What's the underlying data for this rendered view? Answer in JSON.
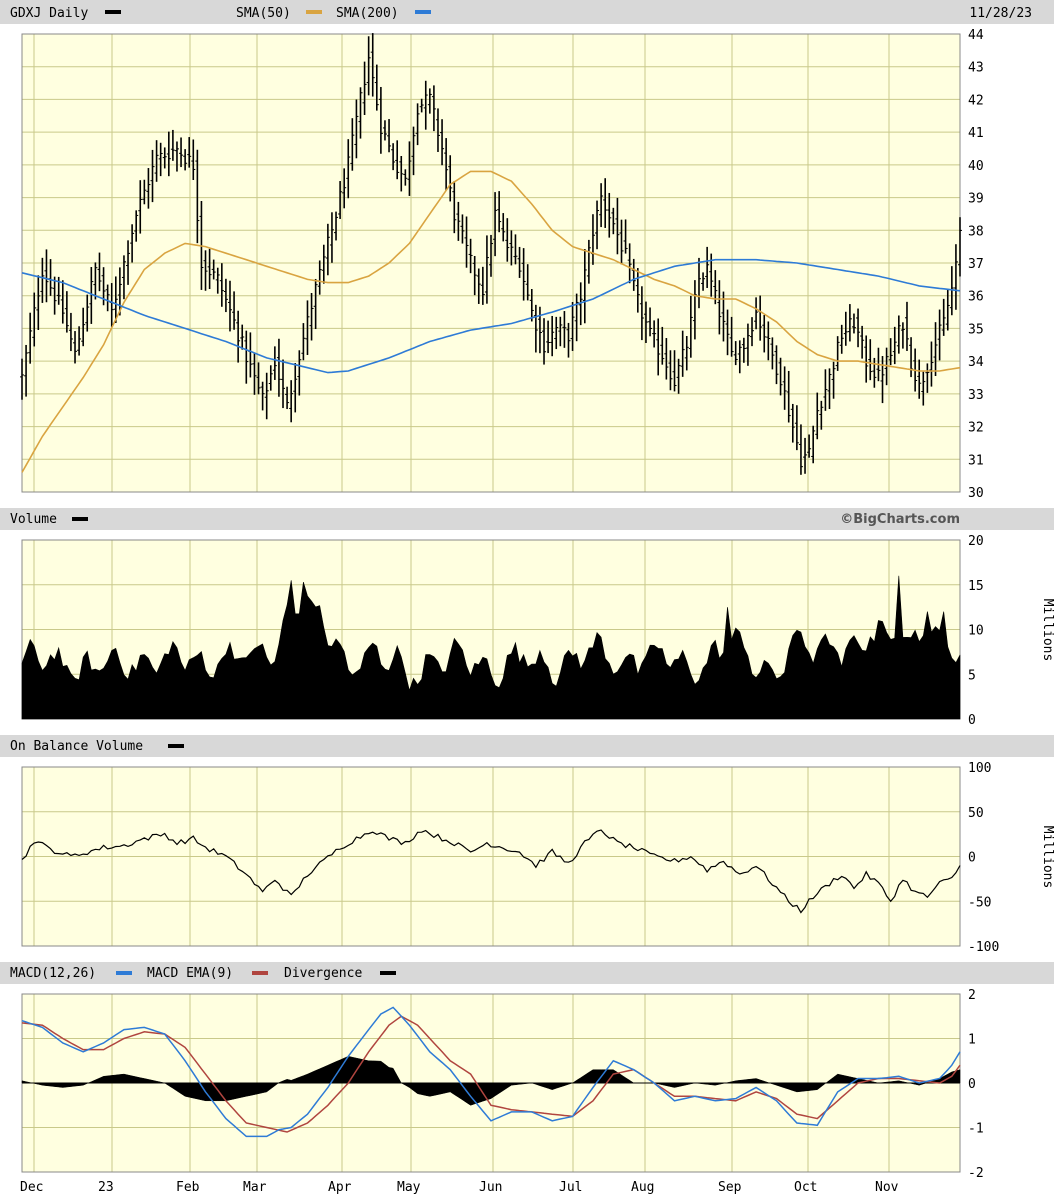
{
  "header": {
    "symbol_label": "GDXJ Daily",
    "sma50_label": "SMA(50)",
    "sma200_label": "SMA(200)",
    "date": "11/28/23"
  },
  "brand": "©BigCharts.com",
  "colors": {
    "plot_bg": "#FFFFE0",
    "grid": "#C9C98A",
    "header_bg": "#D8D8D8",
    "price": "#000000",
    "sma50": "#D9A441",
    "sma200": "#2E7BD6",
    "macd": "#2E7BD6",
    "macd_ema": "#B0453F",
    "divergence": "#000000"
  },
  "chart_data": [
    {
      "id": "price",
      "type": "ohlc",
      "x_labels": [
        "Dec",
        "23",
        "Feb",
        "Mar",
        "Apr",
        "May",
        "Jun",
        "Jul",
        "Aug",
        "Sep",
        "Oct",
        "Nov"
      ],
      "ylim": [
        30,
        44
      ],
      "y_ticks": [
        30,
        31,
        32,
        33,
        34,
        35,
        36,
        37,
        38,
        39,
        40,
        41,
        42,
        43,
        44
      ],
      "price_keypoints": [
        [
          0,
          33.5
        ],
        [
          5,
          36.8
        ],
        [
          10,
          35.5
        ],
        [
          13,
          34.2
        ],
        [
          18,
          36.8
        ],
        [
          22,
          35.5
        ],
        [
          28,
          38.5
        ],
        [
          33,
          40.2
        ],
        [
          38,
          40.5
        ],
        [
          42,
          40.0
        ],
        [
          44,
          37.0
        ],
        [
          48,
          36.5
        ],
        [
          52,
          35.2
        ],
        [
          56,
          33.8
        ],
        [
          59,
          32.8
        ],
        [
          62,
          34.0
        ],
        [
          65,
          32.6
        ],
        [
          68,
          34.2
        ],
        [
          72,
          36.2
        ],
        [
          76,
          38.0
        ],
        [
          80,
          40.0
        ],
        [
          83,
          42.0
        ],
        [
          85,
          43.3
        ],
        [
          88,
          41.2
        ],
        [
          91,
          40.2
        ],
        [
          94,
          39.5
        ],
        [
          97,
          41.8
        ],
        [
          100,
          42.0
        ],
        [
          103,
          40.5
        ],
        [
          106,
          38.5
        ],
        [
          110,
          37.0
        ],
        [
          113,
          36.2
        ],
        [
          116,
          38.5
        ],
        [
          119,
          37.5
        ],
        [
          122,
          37.0
        ],
        [
          125,
          35.5
        ],
        [
          128,
          34.5
        ],
        [
          131,
          35.0
        ],
        [
          134,
          34.8
        ],
        [
          137,
          36.0
        ],
        [
          140,
          38.0
        ],
        [
          142,
          39.0
        ],
        [
          145,
          38.2
        ],
        [
          148,
          37.2
        ],
        [
          151,
          35.8
        ],
        [
          154,
          34.8
        ],
        [
          157,
          34.2
        ],
        [
          160,
          33.4
        ],
        [
          163,
          34.5
        ],
        [
          166,
          36.5
        ],
        [
          168,
          36.8
        ],
        [
          171,
          35.5
        ],
        [
          174,
          34.2
        ],
        [
          177,
          34.5
        ],
        [
          180,
          35.5
        ],
        [
          183,
          34.5
        ],
        [
          186,
          33.5
        ],
        [
          189,
          32.0
        ],
        [
          191,
          31.0
        ],
        [
          193,
          31.2
        ],
        [
          195,
          32.5
        ],
        [
          198,
          33.5
        ],
        [
          201,
          34.8
        ],
        [
          204,
          35.2
        ],
        [
          207,
          34.0
        ],
        [
          210,
          33.5
        ],
        [
          213,
          34.2
        ],
        [
          216,
          35.2
        ],
        [
          218,
          34.0
        ],
        [
          220,
          33.2
        ],
        [
          223,
          34.2
        ],
        [
          226,
          35.2
        ],
        [
          228,
          36.2
        ],
        [
          230,
          37.8
        ]
      ],
      "sma50": [
        [
          0,
          30.6
        ],
        [
          5,
          31.7
        ],
        [
          10,
          32.6
        ],
        [
          15,
          33.5
        ],
        [
          20,
          34.5
        ],
        [
          25,
          35.8
        ],
        [
          30,
          36.8
        ],
        [
          35,
          37.3
        ],
        [
          40,
          37.6
        ],
        [
          45,
          37.5
        ],
        [
          50,
          37.3
        ],
        [
          55,
          37.1
        ],
        [
          60,
          36.9
        ],
        [
          65,
          36.7
        ],
        [
          70,
          36.5
        ],
        [
          75,
          36.4
        ],
        [
          80,
          36.4
        ],
        [
          85,
          36.6
        ],
        [
          90,
          37.0
        ],
        [
          95,
          37.6
        ],
        [
          100,
          38.5
        ],
        [
          105,
          39.4
        ],
        [
          110,
          39.8
        ],
        [
          115,
          39.8
        ],
        [
          120,
          39.5
        ],
        [
          125,
          38.8
        ],
        [
          130,
          38.0
        ],
        [
          135,
          37.5
        ],
        [
          140,
          37.3
        ],
        [
          145,
          37.1
        ],
        [
          150,
          36.8
        ],
        [
          155,
          36.5
        ],
        [
          160,
          36.3
        ],
        [
          165,
          36.0
        ],
        [
          170,
          35.9
        ],
        [
          175,
          35.9
        ],
        [
          180,
          35.6
        ],
        [
          185,
          35.2
        ],
        [
          190,
          34.6
        ],
        [
          195,
          34.2
        ],
        [
          200,
          34.0
        ],
        [
          205,
          34.0
        ],
        [
          210,
          33.9
        ],
        [
          215,
          33.8
        ],
        [
          220,
          33.7
        ],
        [
          225,
          33.7
        ],
        [
          230,
          33.8
        ]
      ],
      "sma200": [
        [
          0,
          36.7
        ],
        [
          10,
          36.4
        ],
        [
          20,
          35.9
        ],
        [
          30,
          35.4
        ],
        [
          40,
          35.0
        ],
        [
          50,
          34.6
        ],
        [
          60,
          34.1
        ],
        [
          70,
          33.8
        ],
        [
          75,
          33.65
        ],
        [
          80,
          33.7
        ],
        [
          90,
          34.1
        ],
        [
          100,
          34.6
        ],
        [
          110,
          34.95
        ],
        [
          120,
          35.15
        ],
        [
          130,
          35.5
        ],
        [
          140,
          35.9
        ],
        [
          150,
          36.5
        ],
        [
          160,
          36.9
        ],
        [
          170,
          37.1
        ],
        [
          180,
          37.1
        ],
        [
          190,
          37.0
        ],
        [
          200,
          36.8
        ],
        [
          210,
          36.6
        ],
        [
          220,
          36.3
        ],
        [
          230,
          36.15
        ]
      ]
    },
    {
      "id": "volume",
      "type": "area",
      "title": "Volume",
      "ylabel": "Millions",
      "ylim": [
        0,
        20
      ],
      "y_ticks": [
        0,
        5,
        10,
        15,
        20
      ],
      "keypoints": [
        [
          0,
          6
        ],
        [
          10,
          6.5
        ],
        [
          20,
          5.5
        ],
        [
          30,
          7
        ],
        [
          40,
          6
        ],
        [
          50,
          7.5
        ],
        [
          55,
          6
        ],
        [
          62,
          8
        ],
        [
          65,
          12
        ],
        [
          68,
          13
        ],
        [
          72,
          11
        ],
        [
          76,
          9
        ],
        [
          80,
          6.5
        ],
        [
          85,
          7
        ],
        [
          90,
          6
        ],
        [
          95,
          5.5
        ],
        [
          100,
          6.5
        ],
        [
          105,
          6
        ],
        [
          110,
          6.5
        ],
        [
          120,
          6
        ],
        [
          130,
          6.5
        ],
        [
          140,
          7
        ],
        [
          150,
          7
        ],
        [
          160,
          6
        ],
        [
          170,
          7
        ],
        [
          175,
          8
        ],
        [
          180,
          6.5
        ],
        [
          185,
          5.5
        ],
        [
          190,
          8
        ],
        [
          195,
          7.5
        ],
        [
          200,
          8.5
        ],
        [
          205,
          7.5
        ],
        [
          210,
          9
        ],
        [
          215,
          10
        ],
        [
          220,
          9.5
        ],
        [
          225,
          8.5
        ],
        [
          230,
          8
        ]
      ],
      "spikes": [
        [
          66,
          15.5
        ],
        [
          69,
          15.3
        ],
        [
          173,
          12.5
        ],
        [
          197,
          9.5
        ],
        [
          210,
          11
        ],
        [
          215,
          16
        ],
        [
          222,
          12
        ],
        [
          226,
          12
        ]
      ]
    },
    {
      "id": "obv",
      "type": "line",
      "title": "On Balance Volume",
      "ylabel": "Millions",
      "ylim": [
        -100,
        100
      ],
      "y_ticks": [
        -100,
        -50,
        0,
        50,
        100
      ],
      "keypoints": [
        [
          0,
          -5
        ],
        [
          3,
          18
        ],
        [
          7,
          8
        ],
        [
          12,
          0
        ],
        [
          16,
          5
        ],
        [
          20,
          10
        ],
        [
          25,
          12
        ],
        [
          30,
          20
        ],
        [
          35,
          25
        ],
        [
          38,
          15
        ],
        [
          42,
          20
        ],
        [
          45,
          10
        ],
        [
          50,
          0
        ],
        [
          55,
          -20
        ],
        [
          59,
          -40
        ],
        [
          62,
          -25
        ],
        [
          66,
          -45
        ],
        [
          70,
          -20
        ],
        [
          74,
          -5
        ],
        [
          78,
          10
        ],
        [
          82,
          20
        ],
        [
          86,
          30
        ],
        [
          90,
          20
        ],
        [
          94,
          15
        ],
        [
          98,
          30
        ],
        [
          102,
          22
        ],
        [
          106,
          15
        ],
        [
          110,
          5
        ],
        [
          114,
          15
        ],
        [
          118,
          10
        ],
        [
          122,
          5
        ],
        [
          126,
          -10
        ],
        [
          130,
          5
        ],
        [
          134,
          -8
        ],
        [
          138,
          15
        ],
        [
          142,
          30
        ],
        [
          146,
          15
        ],
        [
          150,
          10
        ],
        [
          155,
          0
        ],
        [
          160,
          -5
        ],
        [
          164,
          0
        ],
        [
          168,
          -15
        ],
        [
          172,
          -5
        ],
        [
          176,
          -20
        ],
        [
          180,
          -10
        ],
        [
          184,
          -30
        ],
        [
          188,
          -50
        ],
        [
          191,
          -60
        ],
        [
          194,
          -45
        ],
        [
          198,
          -30
        ],
        [
          201,
          -20
        ],
        [
          204,
          -35
        ],
        [
          207,
          -20
        ],
        [
          210,
          -30
        ],
        [
          213,
          -50
        ],
        [
          216,
          -25
        ],
        [
          219,
          -40
        ],
        [
          222,
          -45
        ],
        [
          225,
          -30
        ],
        [
          228,
          -25
        ],
        [
          230,
          -10
        ]
      ]
    },
    {
      "id": "macd",
      "type": "line",
      "title": "MACD(12,26)",
      "series_labels": [
        "MACD(12,26)",
        "MACD EMA(9)",
        "Divergence"
      ],
      "ylim": [
        -2,
        2
      ],
      "y_ticks": [
        -2,
        -1,
        0,
        1,
        2
      ],
      "macd": [
        [
          0,
          1.4
        ],
        [
          5,
          1.25
        ],
        [
          10,
          0.9
        ],
        [
          15,
          0.7
        ],
        [
          20,
          0.9
        ],
        [
          25,
          1.2
        ],
        [
          30,
          1.25
        ],
        [
          35,
          1.1
        ],
        [
          40,
          0.5
        ],
        [
          45,
          -0.2
        ],
        [
          50,
          -0.8
        ],
        [
          55,
          -1.2
        ],
        [
          60,
          -1.2
        ],
        [
          63,
          -1.05
        ],
        [
          66,
          -1.0
        ],
        [
          70,
          -0.7
        ],
        [
          75,
          -0.1
        ],
        [
          80,
          0.6
        ],
        [
          85,
          1.2
        ],
        [
          88,
          1.55
        ],
        [
          91,
          1.7
        ],
        [
          95,
          1.3
        ],
        [
          100,
          0.7
        ],
        [
          105,
          0.3
        ],
        [
          110,
          -0.3
        ],
        [
          115,
          -0.85
        ],
        [
          120,
          -0.65
        ],
        [
          125,
          -0.65
        ],
        [
          130,
          -0.85
        ],
        [
          135,
          -0.75
        ],
        [
          140,
          -0.1
        ],
        [
          145,
          0.5
        ],
        [
          150,
          0.3
        ],
        [
          155,
          0.0
        ],
        [
          160,
          -0.4
        ],
        [
          165,
          -0.3
        ],
        [
          170,
          -0.4
        ],
        [
          175,
          -0.35
        ],
        [
          180,
          -0.1
        ],
        [
          185,
          -0.4
        ],
        [
          190,
          -0.9
        ],
        [
          195,
          -0.95
        ],
        [
          200,
          -0.2
        ],
        [
          205,
          0.1
        ],
        [
          210,
          0.1
        ],
        [
          215,
          0.15
        ],
        [
          220,
          0.0
        ],
        [
          225,
          0.1
        ],
        [
          228,
          0.4
        ],
        [
          230,
          0.7
        ]
      ],
      "macd_ema": [
        [
          0,
          1.35
        ],
        [
          5,
          1.3
        ],
        [
          10,
          1.0
        ],
        [
          15,
          0.75
        ],
        [
          20,
          0.75
        ],
        [
          25,
          1.0
        ],
        [
          30,
          1.15
        ],
        [
          35,
          1.1
        ],
        [
          40,
          0.8
        ],
        [
          45,
          0.2
        ],
        [
          50,
          -0.4
        ],
        [
          55,
          -0.9
        ],
        [
          60,
          -1.0
        ],
        [
          65,
          -1.1
        ],
        [
          70,
          -0.9
        ],
        [
          75,
          -0.5
        ],
        [
          80,
          0.0
        ],
        [
          85,
          0.7
        ],
        [
          90,
          1.3
        ],
        [
          93,
          1.5
        ],
        [
          97,
          1.3
        ],
        [
          100,
          1.0
        ],
        [
          105,
          0.5
        ],
        [
          110,
          0.2
        ],
        [
          115,
          -0.5
        ],
        [
          120,
          -0.6
        ],
        [
          125,
          -0.65
        ],
        [
          130,
          -0.7
        ],
        [
          135,
          -0.75
        ],
        [
          140,
          -0.4
        ],
        [
          145,
          0.2
        ],
        [
          150,
          0.3
        ],
        [
          155,
          0.0
        ],
        [
          160,
          -0.3
        ],
        [
          165,
          -0.3
        ],
        [
          170,
          -0.35
        ],
        [
          175,
          -0.4
        ],
        [
          180,
          -0.2
        ],
        [
          185,
          -0.35
        ],
        [
          190,
          -0.7
        ],
        [
          195,
          -0.8
        ],
        [
          200,
          -0.4
        ],
        [
          205,
          0.0
        ],
        [
          210,
          0.1
        ],
        [
          215,
          0.1
        ],
        [
          220,
          0.05
        ],
        [
          225,
          0.0
        ],
        [
          228,
          0.15
        ],
        [
          230,
          0.4
        ]
      ]
    }
  ]
}
